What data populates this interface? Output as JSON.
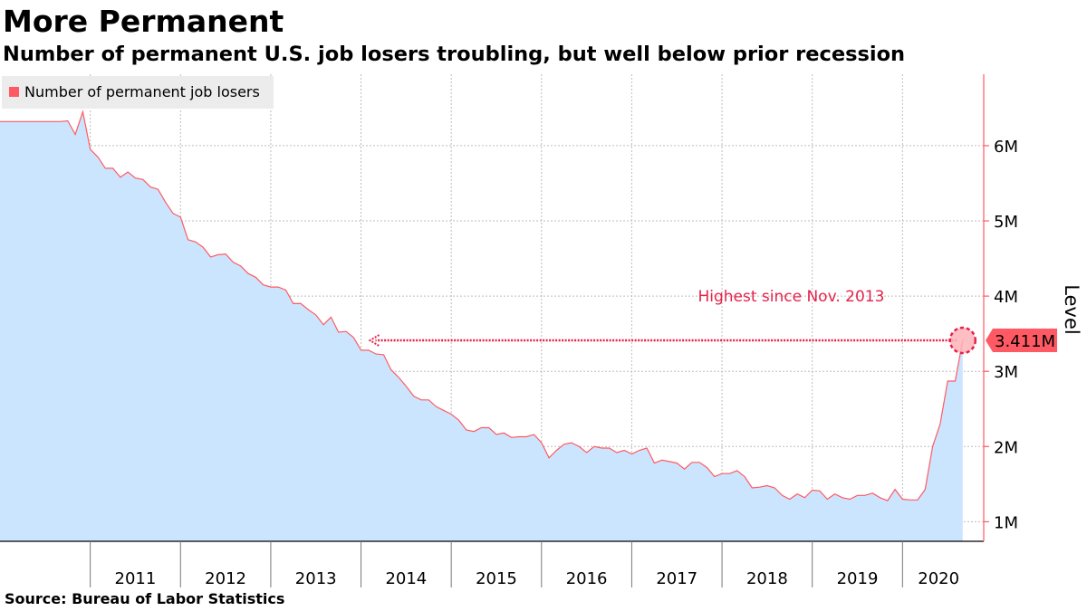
{
  "chart_data": {
    "type": "area",
    "title": "More Permanent",
    "subtitle": "Number of permanent U.S. job losers troubling, but well below prior recession",
    "source": "Source:  Bureau of Labor Statistics",
    "ylabel": "Level",
    "xlabel": "",
    "ylim": [
      0.74,
      6.95
    ],
    "xlim": [
      2010.0,
      2020.9
    ],
    "yticks": [
      {
        "value": 1,
        "label": "1M"
      },
      {
        "value": 2,
        "label": "2M"
      },
      {
        "value": 3,
        "label": "3M"
      },
      {
        "value": 4,
        "label": "4M"
      },
      {
        "value": 5,
        "label": "5M"
      },
      {
        "value": 6,
        "label": "6M"
      }
    ],
    "xticks": [
      {
        "value": 2011.5,
        "label": "2011"
      },
      {
        "value": 2012.5,
        "label": "2012"
      },
      {
        "value": 2013.5,
        "label": "2013"
      },
      {
        "value": 2014.5,
        "label": "2014"
      },
      {
        "value": 2015.5,
        "label": "2015"
      },
      {
        "value": 2016.5,
        "label": "2016"
      },
      {
        "value": 2017.5,
        "label": "2017"
      },
      {
        "value": 2018.5,
        "label": "2018"
      },
      {
        "value": 2019.5,
        "label": "2019"
      },
      {
        "value": 2020.4,
        "label": "2020"
      }
    ],
    "year_boundaries": [
      2011,
      2012,
      2013,
      2014,
      2015,
      2016,
      2017,
      2018,
      2019,
      2020
    ],
    "grid": true,
    "legend": "top-left",
    "series": [
      {
        "name": "Number of permanent job losers",
        "color": "#ff5a63",
        "fill": "#cce5ff",
        "start_year": 2010.667,
        "step": 0.0833333,
        "values": [
          6.32,
          6.33,
          6.15,
          6.45,
          5.95,
          5.85,
          5.7,
          5.7,
          5.58,
          5.65,
          5.57,
          5.55,
          5.45,
          5.42,
          5.25,
          5.1,
          5.05,
          4.75,
          4.72,
          4.65,
          4.52,
          4.55,
          4.56,
          4.45,
          4.4,
          4.3,
          4.25,
          4.15,
          4.12,
          4.12,
          4.08,
          3.9,
          3.9,
          3.82,
          3.75,
          3.62,
          3.72,
          3.52,
          3.53,
          3.45,
          3.28,
          3.28,
          3.23,
          3.22,
          3.02,
          2.92,
          2.8,
          2.67,
          2.62,
          2.62,
          2.53,
          2.48,
          2.43,
          2.35,
          2.22,
          2.2,
          2.25,
          2.25,
          2.16,
          2.18,
          2.12,
          2.13,
          2.13,
          2.16,
          2.05,
          1.85,
          1.95,
          2.03,
          2.05,
          2.0,
          1.92,
          2.0,
          1.98,
          1.98,
          1.92,
          1.95,
          1.9,
          1.95,
          1.98,
          1.78,
          1.82,
          1.8,
          1.78,
          1.7,
          1.79,
          1.79,
          1.72,
          1.6,
          1.64,
          1.64,
          1.68,
          1.6,
          1.45,
          1.46,
          1.48,
          1.45,
          1.35,
          1.3,
          1.37,
          1.32,
          1.42,
          1.41,
          1.3,
          1.37,
          1.32,
          1.3,
          1.35,
          1.35,
          1.38,
          1.32,
          1.28,
          1.43,
          1.3,
          1.29,
          1.29,
          1.43,
          2.0,
          2.3,
          2.87,
          2.87,
          3.411
        ]
      }
    ],
    "annotations": [
      {
        "text": "Highest since Nov. 2013",
        "x": 2019.8,
        "y": 4.0,
        "color": "#e5224a"
      },
      {
        "type": "arrow",
        "from": {
          "x": 2020.6,
          "y": 3.411
        },
        "to": {
          "x": 2014.1,
          "y": 3.411
        },
        "color": "#e5224a"
      }
    ],
    "last_value": {
      "x": 2020.667,
      "y": 3.411,
      "label": "3.411M",
      "color": "#ff5a63"
    }
  }
}
